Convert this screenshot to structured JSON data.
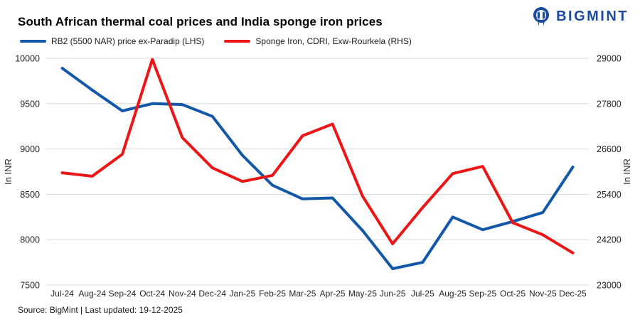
{
  "header": {
    "title": "South African thermal coal prices and India sponge iron prices",
    "brand": "BIGMINT",
    "brand_color": "#1c4b9e"
  },
  "legend": [
    {
      "label": "RB2 (5500 NAR) price ex-Paradip (LHS)",
      "color": "#1257a8"
    },
    {
      "label": "Sponge Iron, CDRI, Exw-Rourkela (RHS)",
      "color": "#ed1515"
    }
  ],
  "footer": {
    "source": "Source: BigMint | Last updated: 19-12-2025"
  },
  "chart_data": {
    "type": "line",
    "title": "South African thermal coal prices and India sponge iron prices",
    "grid": "horizontal",
    "gridline_color": "#d9d9d9",
    "legend_position": "top-left",
    "categories": [
      "Jul-24",
      "Aug-24",
      "Sep-24",
      "Oct-24",
      "Nov-24",
      "Dec-24",
      "Jan-25",
      "Feb-25",
      "Mar-25",
      "Apr-25",
      "May-25",
      "Jun-25",
      "Jul-25",
      "Aug-25",
      "Sep-25",
      "Oct-25",
      "Nov-25",
      "Dec-25"
    ],
    "left_axis": {
      "label": "In INR",
      "min": 7500,
      "max": 10000,
      "ticks": [
        10000,
        9500,
        9000,
        8500,
        8000,
        7500
      ]
    },
    "right_axis": {
      "label": "In INR",
      "min": 23000,
      "max": 29000,
      "ticks": [
        29000,
        27800,
        26600,
        25400,
        24200,
        23000
      ]
    },
    "series": [
      {
        "name": "RB2 (5500 NAR) price ex-Paradip (LHS)",
        "axis": "left",
        "color": "#1257a8",
        "values": [
          9890,
          9650,
          9420,
          9500,
          9490,
          9360,
          8930,
          8600,
          8450,
          8460,
          8100,
          7680,
          7750,
          8250,
          8110,
          8200,
          8300,
          8800
        ]
      },
      {
        "name": "Sponge Iron, CDRI, Exw-Rourkela (RHS)",
        "axis": "right",
        "color": "#ed1515",
        "values": [
          25970,
          25880,
          26460,
          28970,
          26900,
          26100,
          25740,
          25900,
          26950,
          27260,
          25350,
          24090,
          25050,
          25950,
          26140,
          24650,
          24330,
          23850
        ]
      }
    ]
  }
}
